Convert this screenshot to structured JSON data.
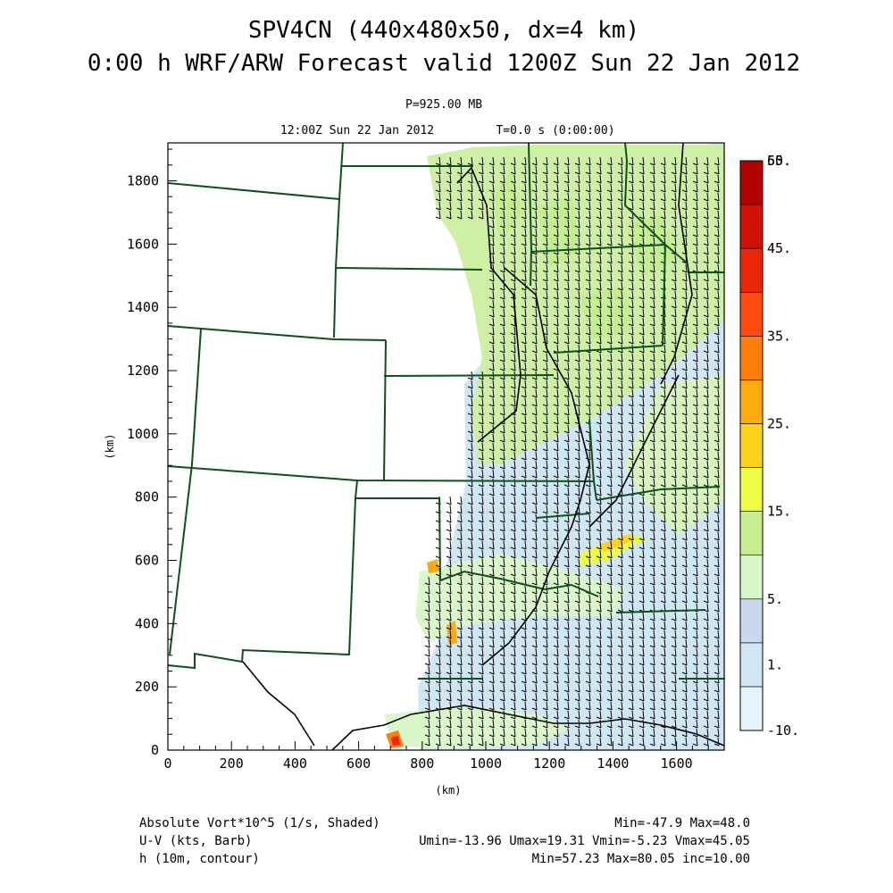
{
  "header": {
    "title_line1": "SPV4CN (440x480x50, dx=4 km)",
    "title_line2": "0:00 h WRF/ARW Forecast valid 1200Z Sun 22 Jan 2012",
    "level": "P=925.00 MB",
    "valid_time": "12:00Z Sun 22 Jan 2012",
    "model_time": "T=0.0 s (0:00:00)"
  },
  "chart_data": {
    "type": "heatmap",
    "xlabel": "(km)",
    "ylabel": "(km)",
    "xlim": [
      0,
      1750
    ],
    "ylim": [
      0,
      1920
    ],
    "x_ticks": [
      0,
      200,
      400,
      600,
      800,
      1000,
      1200,
      1400,
      1600
    ],
    "y_ticks": [
      0,
      200,
      400,
      600,
      800,
      1000,
      1200,
      1400,
      1600,
      1800
    ],
    "grid": false,
    "fields": [
      {
        "name": "Absolute Vort*10^5 (1/s, Shaded)",
        "min": -47.9,
        "max": 48.0
      },
      {
        "name": "U-V (kts, Barb)",
        "umin": -13.96,
        "umax": 19.31,
        "vmin": -5.23,
        "vmax": 45.05
      },
      {
        "name": "h (10m, contour)",
        "min": 57.23,
        "max": 80.05,
        "inc": 10.0
      }
    ],
    "colorbar": {
      "levels": [
        -10,
        1,
        5,
        10,
        15,
        20,
        25,
        30,
        35,
        40,
        45,
        50,
        55,
        60
      ],
      "labels": [
        "-10.",
        "1.",
        "5.",
        "15.",
        "25.",
        "35.",
        "45.",
        "55.",
        "60."
      ],
      "colors": [
        "#e4f4fa",
        "#cfe6f5",
        "#cad8ef",
        "#d9f7c8",
        "#c4ef8e",
        "#eefc44",
        "#ffd21e",
        "#ffab10",
        "#ff7d0c",
        "#ff4a10",
        "#ea2607",
        "#cf1004",
        "#b10200"
      ]
    },
    "colors": {
      "map_lines": "#0e5018",
      "barb": "#000000"
    }
  },
  "footer": {
    "left": [
      "Absolute Vort*10^5 (1/s, Shaded)",
      "U-V (kts, Barb)",
      "h (10m, contour)"
    ],
    "right": [
      "Min=-47.9 Max=48.0",
      "Umin=-13.96 Umax=19.31 Vmin=-5.23 Vmax=45.05",
      "Min=57.23 Max=80.05 inc=10.00"
    ]
  }
}
